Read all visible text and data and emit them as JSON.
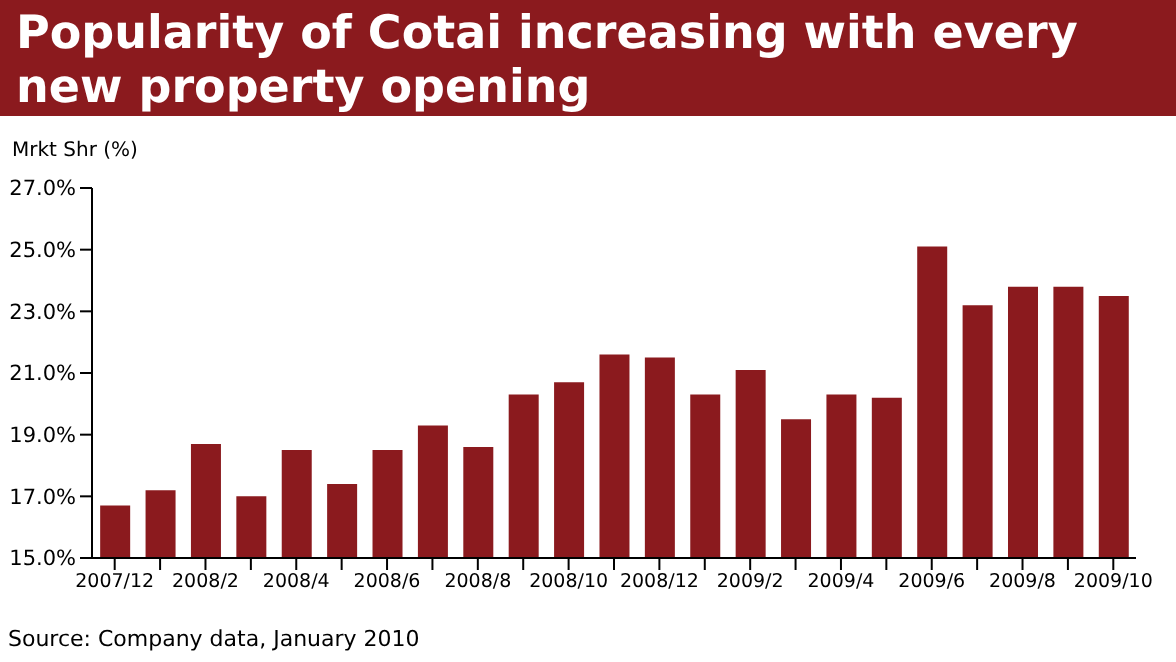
{
  "chart_data": {
    "type": "bar",
    "title": "Popularity of Cotai increasing with every new property opening",
    "ylabel": "Mrkt Shr (%)",
    "categories": [
      "2007/12",
      null,
      "2008/2",
      null,
      "2008/4",
      null,
      "2008/6",
      null,
      "2008/8",
      null,
      "2008/10",
      null,
      "2008/12",
      null,
      "2009/2",
      null,
      "2009/4",
      null,
      "2009/6",
      null,
      "2009/8",
      null,
      "2009/10"
    ],
    "values": [
      16.7,
      17.2,
      18.7,
      17.0,
      18.5,
      17.4,
      18.5,
      19.3,
      18.6,
      20.3,
      20.7,
      21.6,
      21.5,
      20.3,
      21.1,
      19.5,
      20.3,
      20.2,
      25.1,
      23.2,
      23.8,
      23.8,
      23.5
    ],
    "color": "#8b1a1e",
    "ylim": [
      15,
      27
    ],
    "yticks": [
      {
        "value": 15,
        "label": "15.0%"
      },
      {
        "value": 17,
        "label": "17.0%"
      },
      {
        "value": 19,
        "label": "19.0%"
      },
      {
        "value": 21,
        "label": "21.0%"
      },
      {
        "value": 23,
        "label": "23.0%"
      },
      {
        "value": 25,
        "label": "25.0%"
      },
      {
        "value": 27,
        "label": "27.0%"
      }
    ],
    "grid": false,
    "legend": false,
    "annotations": [
      "Source: Company data, January 2010"
    ]
  }
}
